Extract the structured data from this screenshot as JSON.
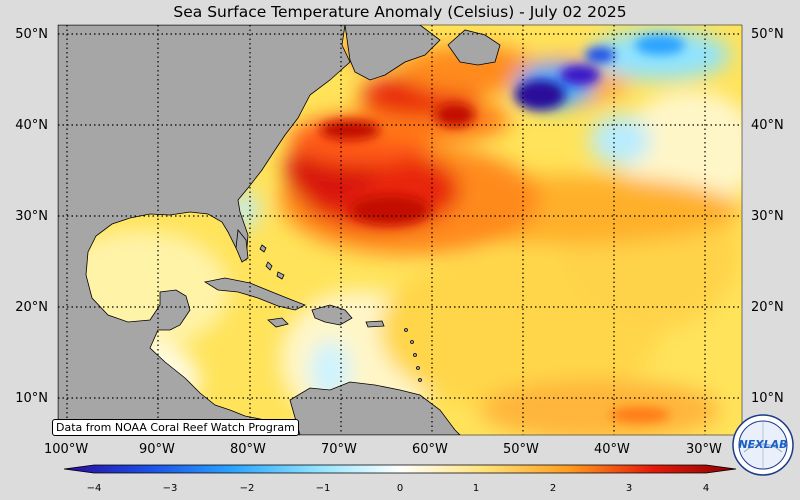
{
  "title": "Sea Surface Temperature Anomaly (Celsius) - July 02 2025",
  "credit": "Data from NOAA Coral Reef Watch Program",
  "lat_labels": [
    "50°N",
    "40°N",
    "30°N",
    "20°N",
    "10°N"
  ],
  "lon_labels": [
    "100°W",
    "90°W",
    "80°W",
    "70°W",
    "60°W",
    "50°W",
    "40°W",
    "30°W"
  ],
  "colorbar": {
    "ticks": [
      "−4",
      "−3",
      "−2",
      "−1",
      "0",
      "1",
      "2",
      "3",
      "4"
    ],
    "min": -4,
    "max": 4,
    "colors": [
      "#2a0a9a",
      "#1b4fe6",
      "#2aa3ff",
      "#8fe3ff",
      "#ffffff",
      "#ffe27a",
      "#ff9d1f",
      "#e61b0b",
      "#8a0000"
    ]
  },
  "logo_text": "NEXLAB",
  "colors": {
    "land": "#a6a6a6",
    "background": "#dcdcdc",
    "grid": "#000000"
  }
}
